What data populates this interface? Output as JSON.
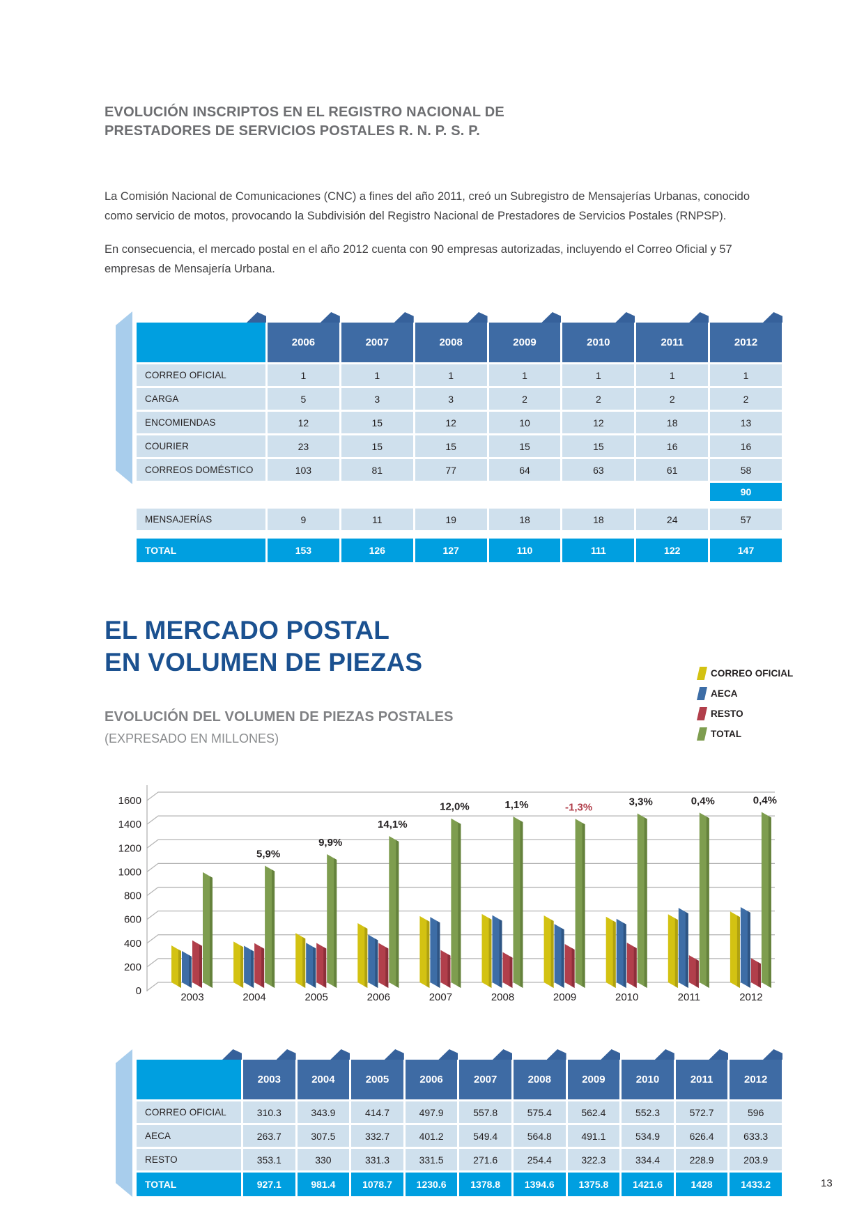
{
  "header": {
    "title_lines": [
      "EVOLUCIÓN INSCRIPTOS EN EL REGISTRO NACIONAL DE",
      "PRESTADORES DE SERVICIOS POSTALES R. N. P. S. P."
    ]
  },
  "paragraphs": [
    {
      "lines": [
        "La Comisión Nacional de Comunicaciones (CNC) a fines del año 2011, creó un Subregistro de Mensajerías Urbanas, conocido",
        "como servicio de motos, provocando la Subdivisión del Registro Nacional de Prestadores de Servicios Postales (RNPSP)."
      ]
    },
    {
      "lines": [
        "En consecuencia, el mercado postal en el año 2012 cuenta con 90 empresas autorizadas, incluyendo el Correo Oficial y 57",
        "empresas de Mensajería Urbana."
      ]
    }
  ],
  "table1": {
    "years": [
      "2006",
      "2007",
      "2008",
      "2009",
      "2010",
      "2011",
      "2012"
    ],
    "rows": [
      {
        "label": "CORREO OFICIAL",
        "values": [
          "1",
          "1",
          "1",
          "1",
          "1",
          "1",
          "1"
        ]
      },
      {
        "label": "CARGA",
        "values": [
          "5",
          "3",
          "3",
          "2",
          "2",
          "2",
          "2"
        ]
      },
      {
        "label": "ENCOMIENDAS",
        "values": [
          "12",
          "15",
          "12",
          "10",
          "12",
          "18",
          "13"
        ]
      },
      {
        "label": "COURIER",
        "values": [
          "23",
          "15",
          "15",
          "15",
          "15",
          "16",
          "16"
        ]
      },
      {
        "label": "CORREOS DOMÉSTICO",
        "values": [
          "103",
          "81",
          "77",
          "64",
          "63",
          "61",
          "58"
        ]
      }
    ],
    "highlight": {
      "value": "90"
    },
    "separate_rows": [
      {
        "label": "MENSAJERÍAS",
        "values": [
          "9",
          "11",
          "19",
          "18",
          "18",
          "24",
          "57"
        ]
      }
    ],
    "total": {
      "label": "TOTAL",
      "values": [
        "153",
        "126",
        "127",
        "110",
        "111",
        "122",
        "147"
      ]
    }
  },
  "section2": {
    "title_lines": [
      "EL MERCADO POSTAL",
      "EN VOLUMEN DE PIEZAS"
    ],
    "subtitle": "EVOLUCIÓN DEL VOLUMEN DE PIEZAS POSTALES",
    "subtitle_note": "(EXPRESADO EN MILLONES)"
  },
  "legend": {
    "items": [
      {
        "label": "CORREO OFICIAL",
        "color": "#d3c212"
      },
      {
        "label": "AECA",
        "color": "#3d6da6"
      },
      {
        "label": "RESTO",
        "color": "#b13f4b"
      },
      {
        "label": "TOTAL",
        "color": "#7e9d4f"
      }
    ]
  },
  "chart_data": {
    "type": "bar",
    "title": "EVOLUCIÓN DEL VOLUMEN DE PIEZAS POSTALES (EXPRESADO EN MILLONES)",
    "categories": [
      "2003",
      "2004",
      "2005",
      "2006",
      "2007",
      "2008",
      "2009",
      "2010",
      "2011",
      "2012"
    ],
    "series": [
      {
        "name": "CORREO OFICIAL",
        "color": "#d3c212",
        "color_dark": "#b0a20f",
        "values": [
          310.3,
          343.9,
          414.7,
          497.9,
          557.8,
          575.4,
          562.4,
          552.3,
          572.7,
          596
        ]
      },
      {
        "name": "AECA",
        "color": "#3d6da6",
        "color_dark": "#2e5584",
        "values": [
          263.7,
          307.5,
          332.7,
          401.2,
          549.4,
          564.8,
          491.1,
          534.9,
          626.4,
          633.3
        ]
      },
      {
        "name": "RESTO",
        "color": "#b13f4b",
        "color_dark": "#8e2f3a",
        "values": [
          353.1,
          330,
          331.3,
          331.5,
          271.6,
          254.4,
          322.3,
          334.4,
          228.9,
          203.9
        ]
      },
      {
        "name": "TOTAL",
        "color": "#7e9d4f",
        "color_dark": "#65823c",
        "values": [
          927.1,
          981.4,
          1078.7,
          1230.6,
          1378.8,
          1394.6,
          1375.8,
          1421.6,
          1428,
          1433.2
        ]
      }
    ],
    "growth_labels": [
      "",
      "5,9%",
      "9,9%",
      "14,1%",
      "12,0%",
      "1,1%",
      "-1,3%",
      "3,3%",
      "0,4%",
      "0,4%"
    ],
    "growth_negative_color": "#b13f4b",
    "xlabel": "",
    "ylabel": "",
    "ylim": [
      0,
      1600
    ],
    "ytick_step": 200,
    "grid": true,
    "legend_position": "top-right"
  },
  "table2": {
    "years": [
      "2003",
      "2004",
      "2005",
      "2006",
      "2007",
      "2008",
      "2009",
      "2010",
      "2011",
      "2012"
    ],
    "rows": [
      {
        "label": "CORREO OFICIAL",
        "values": [
          "310.3",
          "343.9",
          "414.7",
          "497.9",
          "557.8",
          "575.4",
          "562.4",
          "552.3",
          "572.7",
          "596"
        ]
      },
      {
        "label": "AECA",
        "values": [
          "263.7",
          "307.5",
          "332.7",
          "401.2",
          "549.4",
          "564.8",
          "491.1",
          "534.9",
          "626.4",
          "633.3"
        ]
      },
      {
        "label": "RESTO",
        "values": [
          "353.1",
          "330",
          "331.3",
          "331.5",
          "271.6",
          "254.4",
          "322.3",
          "334.4",
          "228.9",
          "203.9"
        ]
      }
    ],
    "total": {
      "label": "TOTAL",
      "values": [
        "927.1",
        "981.4",
        "1078.7",
        "1230.6",
        "1378.8",
        "1394.6",
        "1375.8",
        "1421.6",
        "1428",
        "1433.2"
      ]
    }
  },
  "footer": {
    "page_number": "13"
  }
}
